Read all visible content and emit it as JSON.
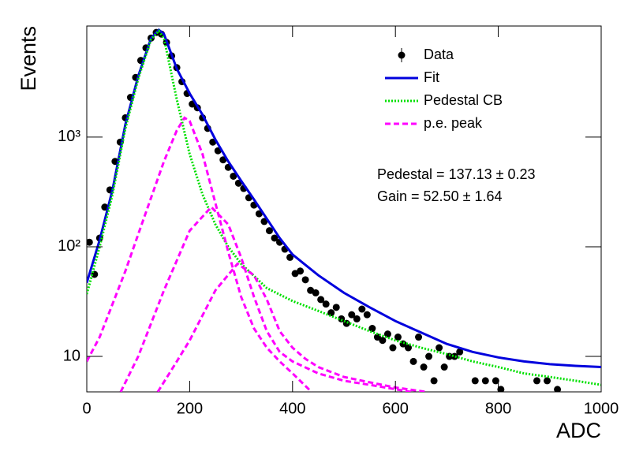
{
  "chart_data": {
    "type": "line",
    "xlabel": "ADC",
    "ylabel": "Events",
    "log_y": true,
    "xlim": [
      0,
      1000
    ],
    "ylim": [
      4.75,
      10300
    ],
    "xticks": [
      0,
      200,
      400,
      600,
      800,
      1000
    ],
    "yticks": [
      10,
      {
        "value": 100,
        "label": "10²"
      },
      {
        "value": 1000,
        "label": "10³"
      }
    ],
    "legend": "upper right",
    "annotations": [
      "Pedestal = 137.13 ± 0.23",
      "Gain = 52.50 ± 1.64"
    ],
    "series": [
      {
        "name": "Data",
        "color": "#000000",
        "style": "points",
        "x": [
          5,
          15,
          25,
          35,
          45,
          55,
          65,
          75,
          85,
          95,
          105,
          115,
          125,
          135,
          145,
          155,
          165,
          175,
          185,
          195,
          205,
          215,
          225,
          235,
          245,
          255,
          265,
          275,
          285,
          295,
          305,
          315,
          325,
          335,
          345,
          355,
          365,
          375,
          385,
          395,
          405,
          415,
          425,
          435,
          445,
          455,
          465,
          475,
          485,
          495,
          505,
          515,
          525,
          535,
          545,
          555,
          565,
          575,
          585,
          595,
          605,
          615,
          625,
          635,
          645,
          655,
          665,
          675,
          685,
          695,
          705,
          715,
          725,
          755,
          775,
          795,
          805,
          875,
          895,
          915
        ],
        "values": [
          110,
          56,
          120,
          230,
          330,
          600,
          900,
          1500,
          2300,
          3500,
          5000,
          6500,
          8000,
          9000,
          8700,
          7300,
          5500,
          4300,
          3200,
          2500,
          2000,
          1850,
          1500,
          1200,
          900,
          750,
          620,
          530,
          440,
          380,
          340,
          280,
          240,
          200,
          170,
          140,
          120,
          110,
          95,
          80,
          57,
          60,
          50,
          40,
          38,
          33,
          30,
          25,
          28,
          22,
          20,
          24,
          22,
          27,
          24,
          18,
          15,
          14,
          16,
          12,
          15,
          13,
          12,
          9,
          15,
          8,
          10,
          6,
          12,
          8,
          10,
          10,
          11,
          6,
          6,
          6,
          5,
          6,
          6,
          5
        ]
      },
      {
        "name": "Fit",
        "color": "#0000dd",
        "style": "solid",
        "x": [
          0,
          25,
          50,
          75,
          100,
          125,
          140,
          150,
          175,
          200,
          225,
          250,
          275,
          300,
          325,
          350,
          375,
          400,
          450,
          500,
          550,
          600,
          650,
          700,
          750,
          800,
          850,
          900,
          950,
          1000
        ],
        "values": [
          47,
          115,
          330,
          1300,
          3600,
          8000,
          9500,
          8700,
          4200,
          2500,
          1600,
          950,
          600,
          400,
          270,
          180,
          120,
          85,
          55,
          38,
          28,
          21,
          16.5,
          13,
          11,
          9.8,
          9,
          8.5,
          8.2,
          8
        ]
      },
      {
        "name": "Pedestal CB",
        "color": "#00e000",
        "style": "dotted",
        "x": [
          0,
          25,
          50,
          75,
          100,
          125,
          140,
          150,
          175,
          200,
          225,
          250,
          275,
          300,
          350,
          400,
          450,
          500,
          550,
          600,
          650,
          700,
          750,
          800,
          850,
          900,
          950,
          1000
        ],
        "values": [
          37,
          100,
          300,
          1200,
          3400,
          7800,
          9300,
          8000,
          2200,
          700,
          300,
          160,
          100,
          70,
          42,
          32,
          26,
          21,
          17,
          14,
          12,
          10.5,
          9,
          8,
          7,
          6.5,
          6,
          5.5
        ]
      },
      {
        "name": "p.e. peak",
        "color": "#ff00ff",
        "style": "dashed",
        "x": [
          0,
          25,
          50,
          75,
          100,
          125,
          150,
          175,
          190,
          200,
          225,
          250,
          275,
          300,
          325,
          350,
          375,
          400,
          437,
          null,
          66,
          100,
          150,
          200,
          242,
          275,
          300,
          325,
          350,
          375,
          400,
          450,
          500,
          550,
          630,
          null,
          138,
          175,
          200,
          250,
          293,
          325,
          350,
          375,
          400,
          425,
          450,
          500,
          550,
          600,
          660
        ],
        "values": [
          9,
          15,
          30,
          60,
          130,
          280,
          600,
          1150,
          1500,
          1400,
          700,
          250,
          90,
          35,
          18,
          12,
          9,
          7,
          4.75,
          null,
          4.75,
          10,
          40,
          140,
          230,
          160,
          80,
          35,
          17,
          11,
          9,
          7,
          6,
          5.5,
          4.75,
          null,
          4.75,
          9,
          14,
          40,
          70,
          55,
          33,
          17,
          12,
          9.5,
          8,
          6.5,
          5.8,
          5.2,
          4.75
        ]
      }
    ]
  }
}
